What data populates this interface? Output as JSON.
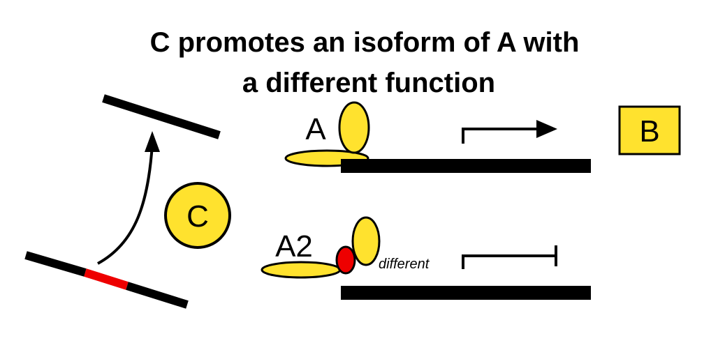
{
  "title": {
    "line1": "C promotes an isoform of A with",
    "line2": "a different function"
  },
  "labels": {
    "protein_a": "A",
    "protein_a2": "A2",
    "protein_c": "C",
    "gene_b": "B",
    "different": "different"
  },
  "colors": {
    "protein_fill": "#FFE22E",
    "splice_region": "#EE0000",
    "outline": "#000000"
  }
}
